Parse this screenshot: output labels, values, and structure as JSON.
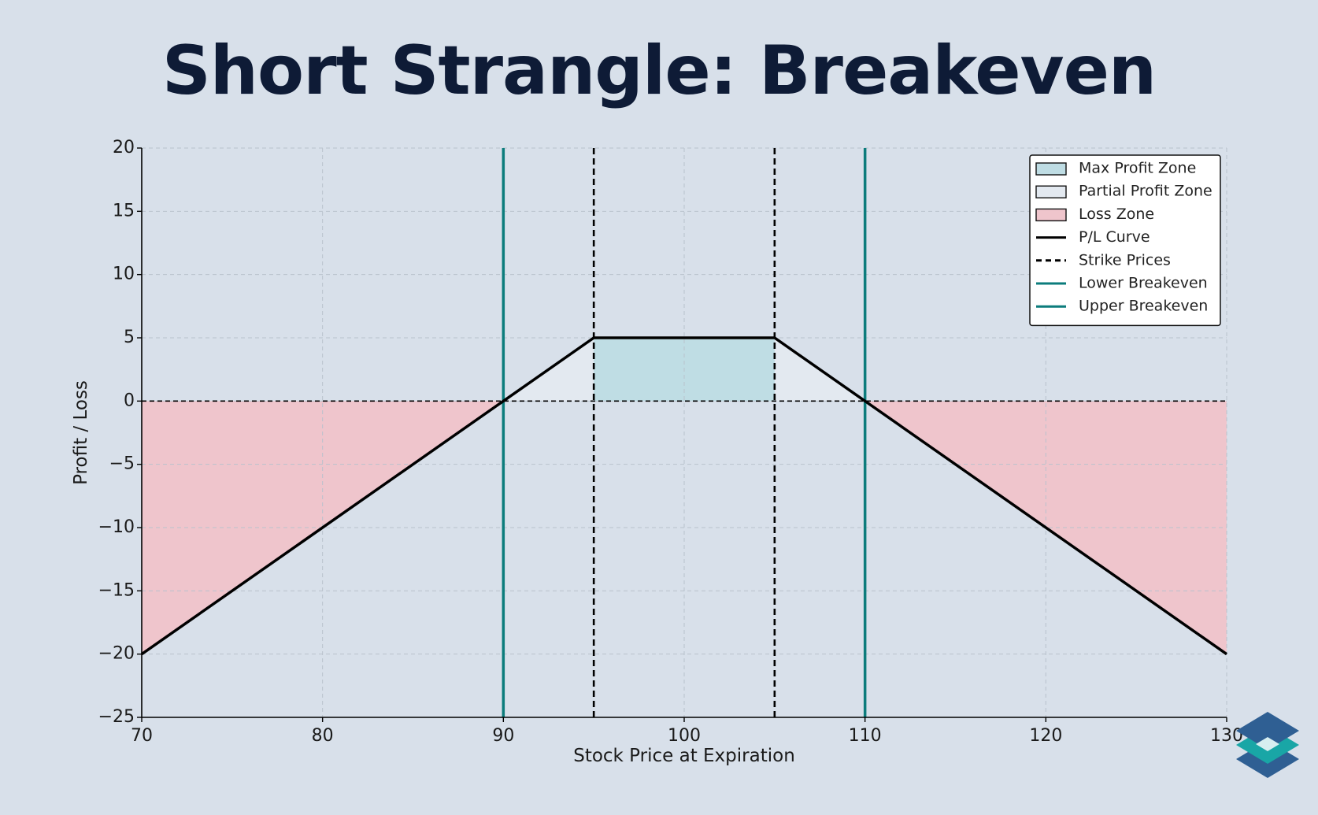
{
  "chart_data": {
    "type": "line",
    "title": "Short Strangle: Breakeven",
    "xlabel": "Stock Price at Expiration",
    "ylabel": "Profit / Loss",
    "xlim": [
      70,
      130
    ],
    "ylim": [
      -25,
      20
    ],
    "xticks": [
      70,
      80,
      90,
      100,
      110,
      120,
      130
    ],
    "yticks": [
      20,
      15,
      10,
      5,
      0,
      -5,
      -10,
      -15,
      -20,
      -25
    ],
    "grid": true,
    "legend_position": "top-right",
    "series": [
      {
        "name": "P/L Curve",
        "color": "#000000",
        "x": [
          70,
          90,
          95,
          105,
          110,
          130
        ],
        "y": [
          -20,
          0,
          5,
          5,
          0,
          -20
        ]
      }
    ],
    "strike_prices": [
      95,
      105
    ],
    "breakevens": {
      "lower": 90,
      "upper": 110
    },
    "zones": {
      "max_profit": {
        "x_range": [
          95,
          105
        ],
        "color": "#bfdde4"
      },
      "partial_profit": {
        "x_ranges": [
          [
            90,
            95
          ],
          [
            105,
            110
          ]
        ],
        "color": "#e3e9f0"
      },
      "loss": {
        "x_ranges": [
          [
            70,
            90
          ],
          [
            110,
            130
          ]
        ],
        "color": "#efc5cc"
      }
    },
    "colors": {
      "breakeven_line": "#0c7c7c",
      "strike_line": "#000000",
      "background": "#d8e0ea"
    },
    "legend": [
      {
        "label": "Max Profit Zone",
        "kind": "patch",
        "color": "#bfdde4"
      },
      {
        "label": "Partial Profit Zone",
        "kind": "patch",
        "color": "#e3e9f0"
      },
      {
        "label": "Loss Zone",
        "kind": "patch",
        "color": "#efc5cc"
      },
      {
        "label": "P/L Curve",
        "kind": "line",
        "color": "#000000",
        "dash": false
      },
      {
        "label": "Strike Prices",
        "kind": "line",
        "color": "#000000",
        "dash": true
      },
      {
        "label": "Lower Breakeven",
        "kind": "line",
        "color": "#0c7c7c",
        "dash": false
      },
      {
        "label": "Upper Breakeven",
        "kind": "line",
        "color": "#0c7c7c",
        "dash": false
      }
    ]
  },
  "logo": {
    "icon": "stacked-layers-icon",
    "colors": [
      "#2f5f93",
      "#19a6a6",
      "#d7eef0"
    ]
  }
}
